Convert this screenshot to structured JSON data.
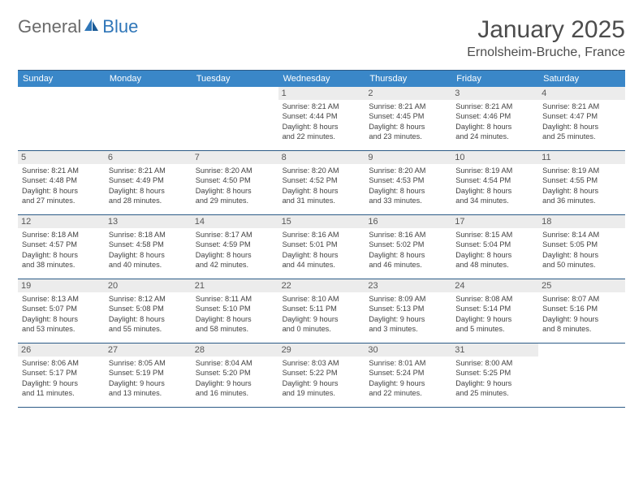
{
  "logo": {
    "textGeneral": "General",
    "textBlue": "Blue"
  },
  "title": "January 2025",
  "location": "Ernolsheim-Bruche, France",
  "colors": {
    "headerBg": "#3a87c8",
    "borderDark": "#2c5b87",
    "dayNumBg": "#ececec",
    "textDark": "#424242",
    "textMed": "#585858",
    "titleColor": "#4c4c4c",
    "logoGray": "#6a6a6a",
    "logoBlue": "#2f76b8"
  },
  "weekdays": [
    "Sunday",
    "Monday",
    "Tuesday",
    "Wednesday",
    "Thursday",
    "Friday",
    "Saturday"
  ],
  "weeks": [
    [
      null,
      null,
      null,
      {
        "n": "1",
        "sr": "8:21 AM",
        "ss": "4:44 PM",
        "dh": "8",
        "dm": "22"
      },
      {
        "n": "2",
        "sr": "8:21 AM",
        "ss": "4:45 PM",
        "dh": "8",
        "dm": "23"
      },
      {
        "n": "3",
        "sr": "8:21 AM",
        "ss": "4:46 PM",
        "dh": "8",
        "dm": "24"
      },
      {
        "n": "4",
        "sr": "8:21 AM",
        "ss": "4:47 PM",
        "dh": "8",
        "dm": "25"
      }
    ],
    [
      {
        "n": "5",
        "sr": "8:21 AM",
        "ss": "4:48 PM",
        "dh": "8",
        "dm": "27"
      },
      {
        "n": "6",
        "sr": "8:21 AM",
        "ss": "4:49 PM",
        "dh": "8",
        "dm": "28"
      },
      {
        "n": "7",
        "sr": "8:20 AM",
        "ss": "4:50 PM",
        "dh": "8",
        "dm": "29"
      },
      {
        "n": "8",
        "sr": "8:20 AM",
        "ss": "4:52 PM",
        "dh": "8",
        "dm": "31"
      },
      {
        "n": "9",
        "sr": "8:20 AM",
        "ss": "4:53 PM",
        "dh": "8",
        "dm": "33"
      },
      {
        "n": "10",
        "sr": "8:19 AM",
        "ss": "4:54 PM",
        "dh": "8",
        "dm": "34"
      },
      {
        "n": "11",
        "sr": "8:19 AM",
        "ss": "4:55 PM",
        "dh": "8",
        "dm": "36"
      }
    ],
    [
      {
        "n": "12",
        "sr": "8:18 AM",
        "ss": "4:57 PM",
        "dh": "8",
        "dm": "38"
      },
      {
        "n": "13",
        "sr": "8:18 AM",
        "ss": "4:58 PM",
        "dh": "8",
        "dm": "40"
      },
      {
        "n": "14",
        "sr": "8:17 AM",
        "ss": "4:59 PM",
        "dh": "8",
        "dm": "42"
      },
      {
        "n": "15",
        "sr": "8:16 AM",
        "ss": "5:01 PM",
        "dh": "8",
        "dm": "44"
      },
      {
        "n": "16",
        "sr": "8:16 AM",
        "ss": "5:02 PM",
        "dh": "8",
        "dm": "46"
      },
      {
        "n": "17",
        "sr": "8:15 AM",
        "ss": "5:04 PM",
        "dh": "8",
        "dm": "48"
      },
      {
        "n": "18",
        "sr": "8:14 AM",
        "ss": "5:05 PM",
        "dh": "8",
        "dm": "50"
      }
    ],
    [
      {
        "n": "19",
        "sr": "8:13 AM",
        "ss": "5:07 PM",
        "dh": "8",
        "dm": "53"
      },
      {
        "n": "20",
        "sr": "8:12 AM",
        "ss": "5:08 PM",
        "dh": "8",
        "dm": "55"
      },
      {
        "n": "21",
        "sr": "8:11 AM",
        "ss": "5:10 PM",
        "dh": "8",
        "dm": "58"
      },
      {
        "n": "22",
        "sr": "8:10 AM",
        "ss": "5:11 PM",
        "dh": "9",
        "dm": "0"
      },
      {
        "n": "23",
        "sr": "8:09 AM",
        "ss": "5:13 PM",
        "dh": "9",
        "dm": "3"
      },
      {
        "n": "24",
        "sr": "8:08 AM",
        "ss": "5:14 PM",
        "dh": "9",
        "dm": "5"
      },
      {
        "n": "25",
        "sr": "8:07 AM",
        "ss": "5:16 PM",
        "dh": "9",
        "dm": "8"
      }
    ],
    [
      {
        "n": "26",
        "sr": "8:06 AM",
        "ss": "5:17 PM",
        "dh": "9",
        "dm": "11"
      },
      {
        "n": "27",
        "sr": "8:05 AM",
        "ss": "5:19 PM",
        "dh": "9",
        "dm": "13"
      },
      {
        "n": "28",
        "sr": "8:04 AM",
        "ss": "5:20 PM",
        "dh": "9",
        "dm": "16"
      },
      {
        "n": "29",
        "sr": "8:03 AM",
        "ss": "5:22 PM",
        "dh": "9",
        "dm": "19"
      },
      {
        "n": "30",
        "sr": "8:01 AM",
        "ss": "5:24 PM",
        "dh": "9",
        "dm": "22"
      },
      {
        "n": "31",
        "sr": "8:00 AM",
        "ss": "5:25 PM",
        "dh": "9",
        "dm": "25"
      },
      null
    ]
  ]
}
